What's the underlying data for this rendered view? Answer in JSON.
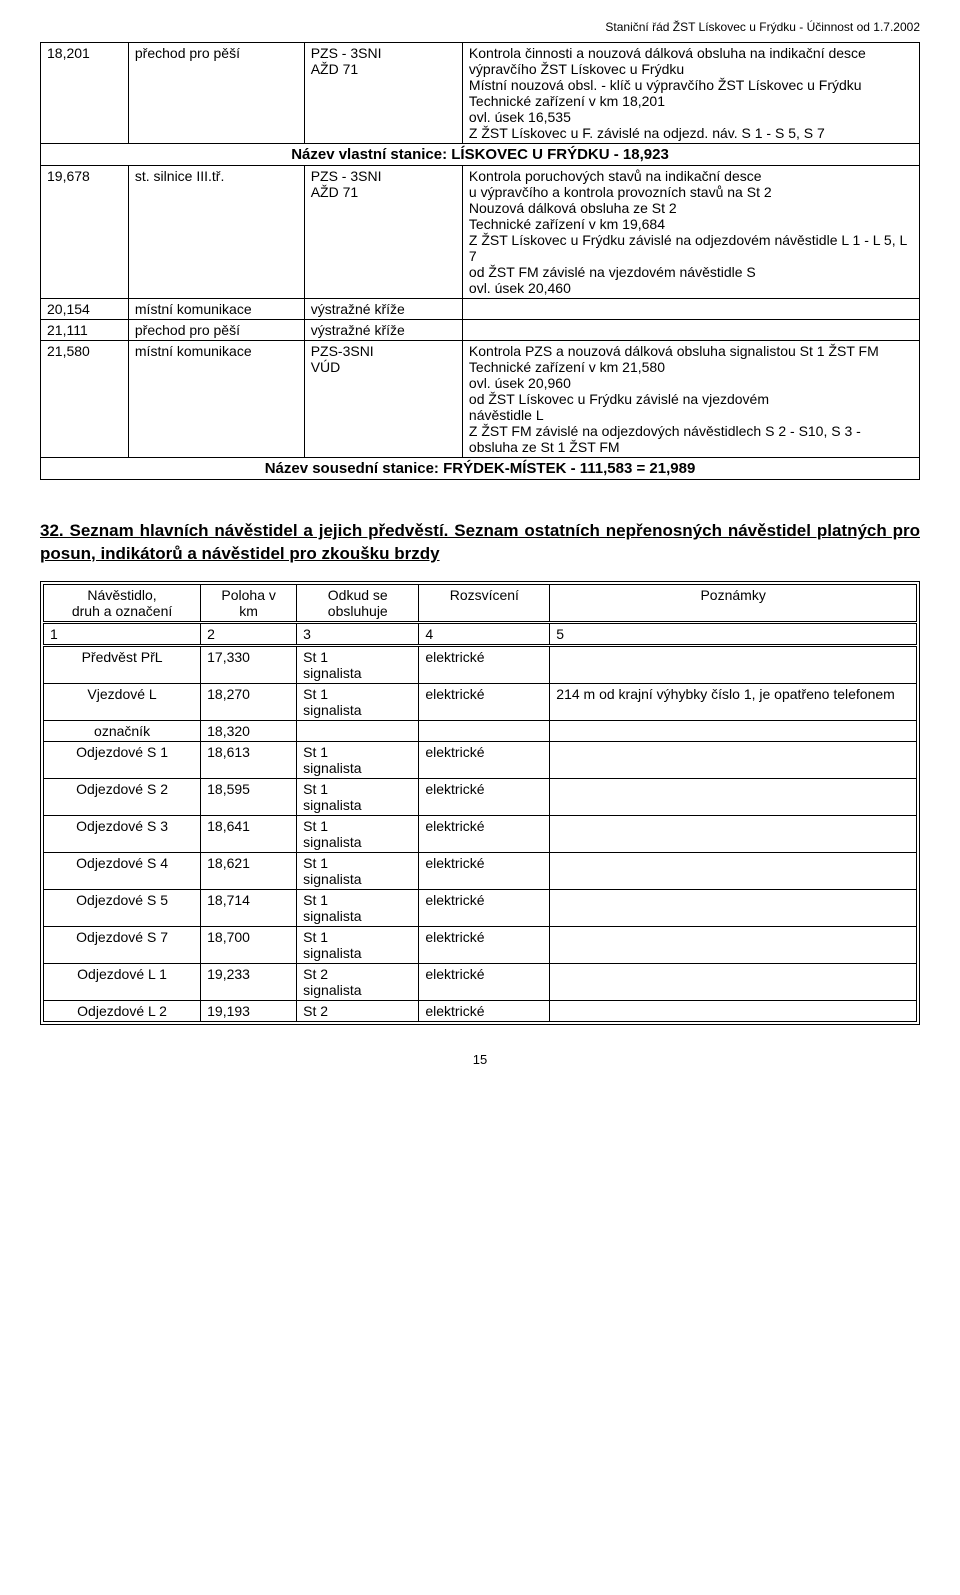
{
  "header_text": "Staniční řád ŽST Lískovec u Frýdku - Účinnost od 1.7.2002",
  "page_number": "15",
  "table1": {
    "rows": [
      {
        "c1": "18,201",
        "c2": "přechod pro pěší",
        "c3": "PZS - 3SNI\nAŽD 71",
        "c4": "Kontrola činnosti a nouzová dálková obsluha na indikační desce výpravčího ŽST Lískovec u Frýdku\nMístní nouzová obsl. - klíč u výpravčího ŽST Lískovec  u Frýdku\nTechnické zařízení  v km 18,201\novl. úsek 16,535\nZ ŽST Lískovec u F. závislé na odjezd. náv. S 1 - S 5, S 7"
      }
    ],
    "section1_title": "Název vlastní stanice: LÍSKOVEC U FRÝDKU - 18,923",
    "rows2": [
      {
        "c1": "19,678",
        "c2": "st. silnice III.tř.",
        "c3": "PZS - 3SNI\nAŽD 71",
        "c4": "Kontrola poruchových stavů na indikační desce\nu výpravčího a kontrola provozních stavů na St 2\nNouzová dálková obsluha ze St 2\nTechnické zařízení v km 19,684\nZ  ŽST  Lískovec  u  Frýdku  závislé  na  odjezdovém návěstidle L 1 - L 5, L 7\nod ŽST FM závislé na vjezdovém návěstidle S\novl. úsek  20,460"
      },
      {
        "c1": "20,154",
        "c2": "místní komunikace",
        "c3": "výstražné kříže",
        "c4": ""
      },
      {
        "c1": "21,111",
        "c2": "přechod pro pěší",
        "c3": "výstražné kříže",
        "c4": ""
      },
      {
        "c1": "21,580",
        "c2": "místní komunikace",
        "c3": "PZS-3SNI\nVÚD",
        "c4": "Kontrola PZS a nouzová dálková obsluha  signalistou St 1 ŽST FM\nTechnické zařízení v km 21,580\novl. úsek 20,960\nod ŽST Lískovec u Frýdku závislé na vjezdovém\nnávěstidle L\nZ ŽST FM závislé na odjezdových návěstidlech S 2 - S10, S 3 - obsluha ze St 1 ŽST FM"
      }
    ],
    "section2_title": "Název sousední stanice: FRÝDEK-MÍSTEK - 111,583 = 21,989"
  },
  "heading32": "32.  Seznam  hlavních  návěstidel  a  jejich  předvěstí.  Seznam  ostatních nepřenosných  návěstidel  platných  pro  posun,  indikátorů  a  návěstidel  pro zkoušku brzdy",
  "signals": {
    "headers": [
      "Návěstidlo,\ndruh a označení",
      "Poloha v\nkm",
      "Odkud se\nobsluhuje",
      "Rozsvícení",
      "Poznámky"
    ],
    "numrow": [
      "1",
      "2",
      "3",
      "4",
      "5"
    ],
    "rows": [
      {
        "c1": "Předvěst  PřL",
        "c2": "17,330",
        "c3": "St 1\nsignalista",
        "c4": "elektrické",
        "c5": ""
      },
      {
        "c1": "Vjezdové  L",
        "c2": "18,270",
        "c3": "St 1\nsignalista",
        "c4": "elektrické",
        "c5": "214 m od krajní výhybky číslo 1, je opatřeno  telefonem"
      },
      {
        "c1": "označník",
        "c2": "18,320",
        "c3": "",
        "c4": "",
        "c5": ""
      },
      {
        "c1": "Odjezdové S 1",
        "c2": "18,613",
        "c3": "St 1\nsignalista",
        "c4": "elektrické",
        "c5": ""
      },
      {
        "c1": "Odjezdové  S 2",
        "c2": "18,595",
        "c3": "St 1\nsignalista",
        "c4": "elektrické",
        "c5": ""
      },
      {
        "c1": "Odjezdové  S 3",
        "c2": "18,641",
        "c3": "St 1\nsignalista",
        "c4": "elektrické",
        "c5": ""
      },
      {
        "c1": "Odjezdové  S 4",
        "c2": "18,621",
        "c3": "St 1\nsignalista",
        "c4": "elektrické",
        "c5": ""
      },
      {
        "c1": "Odjezdové  S 5",
        "c2": "18,714",
        "c3": "St 1\nsignalista",
        "c4": "elektrické",
        "c5": ""
      },
      {
        "c1": "Odjezdové  S 7",
        "c2": "18,700",
        "c3": "St 1\nsignalista",
        "c4": "elektrické",
        "c5": ""
      },
      {
        "c1": "Odjezdové  L 1",
        "c2": "19,233",
        "c3": "St 2\nsignalista",
        "c4": "elektrické",
        "c5": ""
      },
      {
        "c1": "Odjezdové  L 2",
        "c2": "19,193",
        "c3": "St 2",
        "c4": "elektrické",
        "c5": ""
      }
    ]
  }
}
